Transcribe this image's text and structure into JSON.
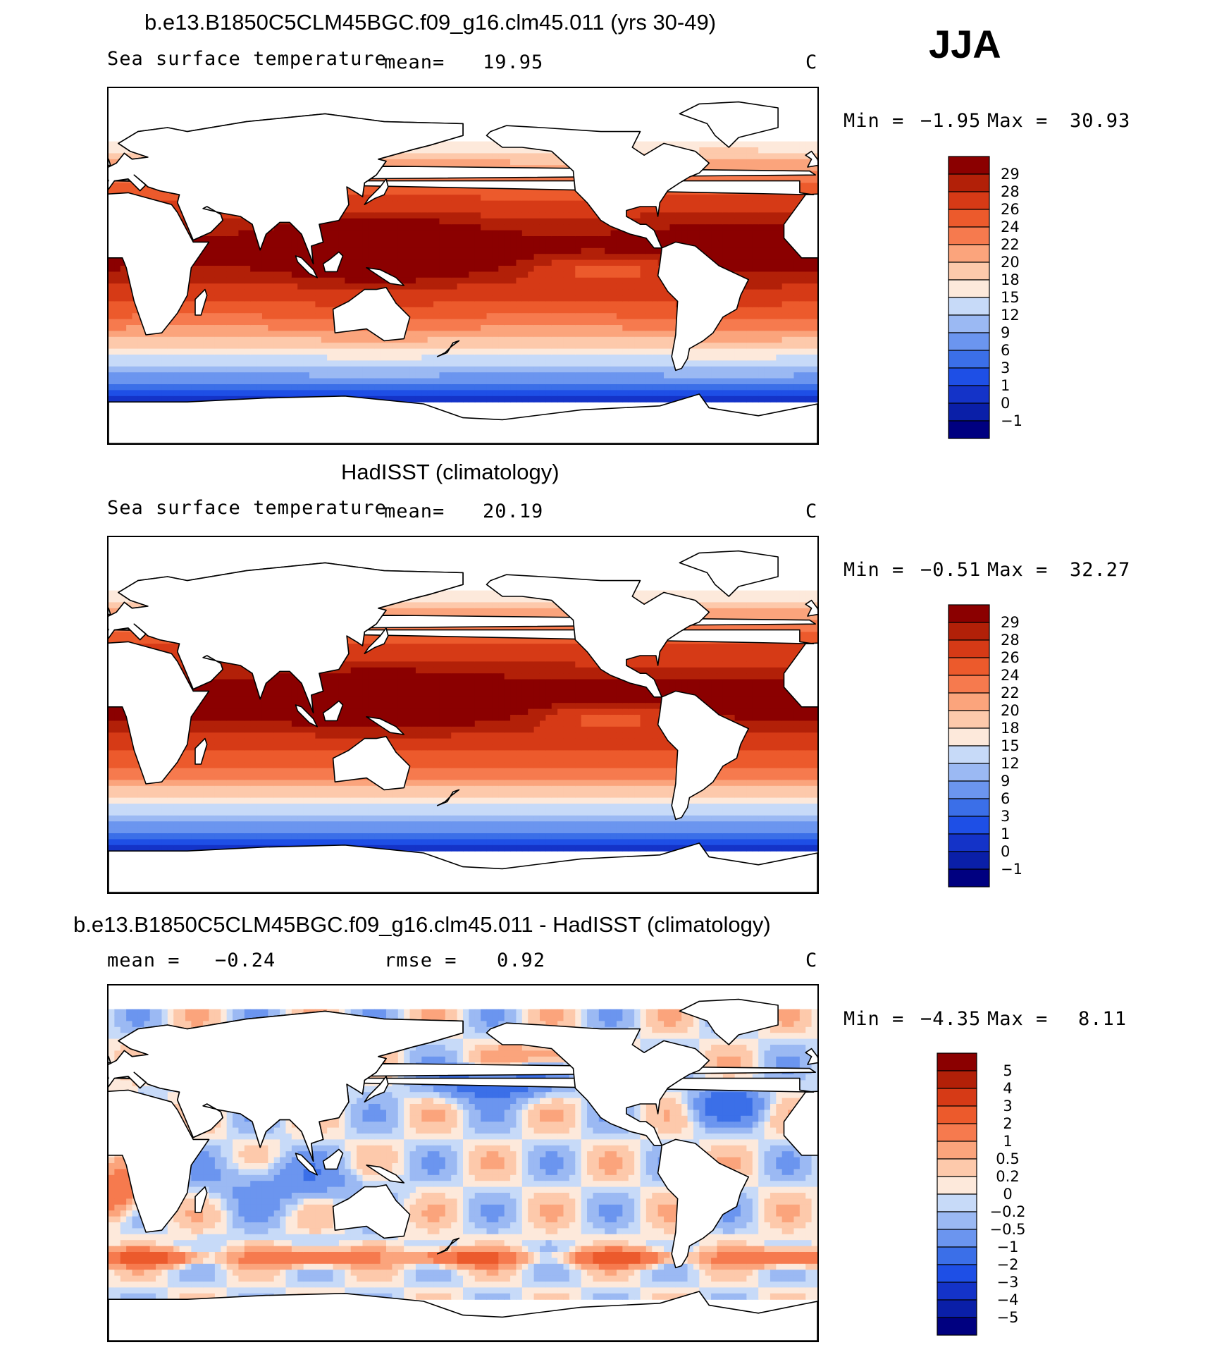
{
  "season": "JJA",
  "colors": {
    "sst_levels": [
      "#000080",
      "#0a1fa8",
      "#1433c8",
      "#1e4fe6",
      "#3b6fe8",
      "#6b95ef",
      "#9bb9f3",
      "#c7daf8",
      "#fde9db",
      "#fdc9ab",
      "#fba47c",
      "#f67a4e",
      "#ec5a2c",
      "#d63a16",
      "#b22008",
      "#8b0000"
    ],
    "diff_levels": [
      "#000080",
      "#0a1fa8",
      "#1433c8",
      "#1e4fe6",
      "#3b6fe8",
      "#6b95ef",
      "#9bb9f3",
      "#c7daf8",
      "#fde9db",
      "#fdc9ab",
      "#fba47c",
      "#f67a4e",
      "#ec5a2c",
      "#d63a16",
      "#b22008",
      "#8b0000"
    ]
  },
  "panels": [
    {
      "id": "model",
      "title": "b.e13.B1850C5CLM45BGC.f09_g16.clm45.011 (yrs 30-49)",
      "variable": "Sea surface temperature",
      "stat_label": "mean=",
      "stat_value": "19.95",
      "units": "C",
      "min_label": "Min =",
      "min_value": "−1.95",
      "max_label": "Max =",
      "max_value": "30.93"
    },
    {
      "id": "obs",
      "title": "HadISST (climatology)",
      "variable": "Sea surface temperature",
      "stat_label": "mean=",
      "stat_value": "20.19",
      "units": "C",
      "min_label": "Min =",
      "min_value": "−0.51",
      "max_label": "Max =",
      "max_value": "32.27"
    },
    {
      "id": "diff",
      "title": "b.e13.B1850C5CLM45BGC.f09_g16.clm45.011 - HadISST (climatology)",
      "stat_label": "mean =",
      "stat_value": "−0.24",
      "rmse_label": "rmse =",
      "rmse_value": "0.92",
      "units": "C",
      "min_label": "Min =",
      "min_value": "−4.35",
      "max_label": "Max =",
      "max_value": "8.11"
    }
  ],
  "chart_data": [
    {
      "type": "heatmap",
      "title": "b.e13.B1850C5CLM45BGC.f09_g16.clm45.011 (yrs 30-49)",
      "subtitle": "Sea surface temperature",
      "units": "C",
      "mean": 19.95,
      "min": -1.95,
      "max": 30.93,
      "colorbar_labels": [
        "29",
        "28",
        "26",
        "24",
        "22",
        "20",
        "18",
        "15",
        "12",
        "9",
        "6",
        "3",
        "1",
        "0",
        "−1"
      ],
      "colorbar_levels": [
        29,
        28,
        26,
        24,
        22,
        20,
        18,
        15,
        12,
        9,
        6,
        3,
        1,
        0,
        -1
      ]
    },
    {
      "type": "heatmap",
      "title": "HadISST (climatology)",
      "subtitle": "Sea surface temperature",
      "units": "C",
      "mean": 20.19,
      "min": -0.51,
      "max": 32.27,
      "colorbar_labels": [
        "29",
        "28",
        "26",
        "24",
        "22",
        "20",
        "18",
        "15",
        "12",
        "9",
        "6",
        "3",
        "1",
        "0",
        "−1"
      ],
      "colorbar_levels": [
        29,
        28,
        26,
        24,
        22,
        20,
        18,
        15,
        12,
        9,
        6,
        3,
        1,
        0,
        -1
      ]
    },
    {
      "type": "heatmap",
      "title": "b.e13.B1850C5CLM45BGC.f09_g16.clm45.011 - HadISST (climatology)",
      "units": "C",
      "mean": -0.24,
      "rmse": 0.92,
      "min": -4.35,
      "max": 8.11,
      "colorbar_labels": [
        "5",
        "4",
        "3",
        "2",
        "1",
        "0.5",
        "0.2",
        "0",
        "−0.2",
        "−0.5",
        "−1",
        "−2",
        "−3",
        "−4",
        "−5"
      ],
      "colorbar_levels": [
        5,
        4,
        3,
        2,
        1,
        0.5,
        0.2,
        0,
        -0.2,
        -0.5,
        -1,
        -2,
        -3,
        -4,
        -5
      ]
    }
  ]
}
